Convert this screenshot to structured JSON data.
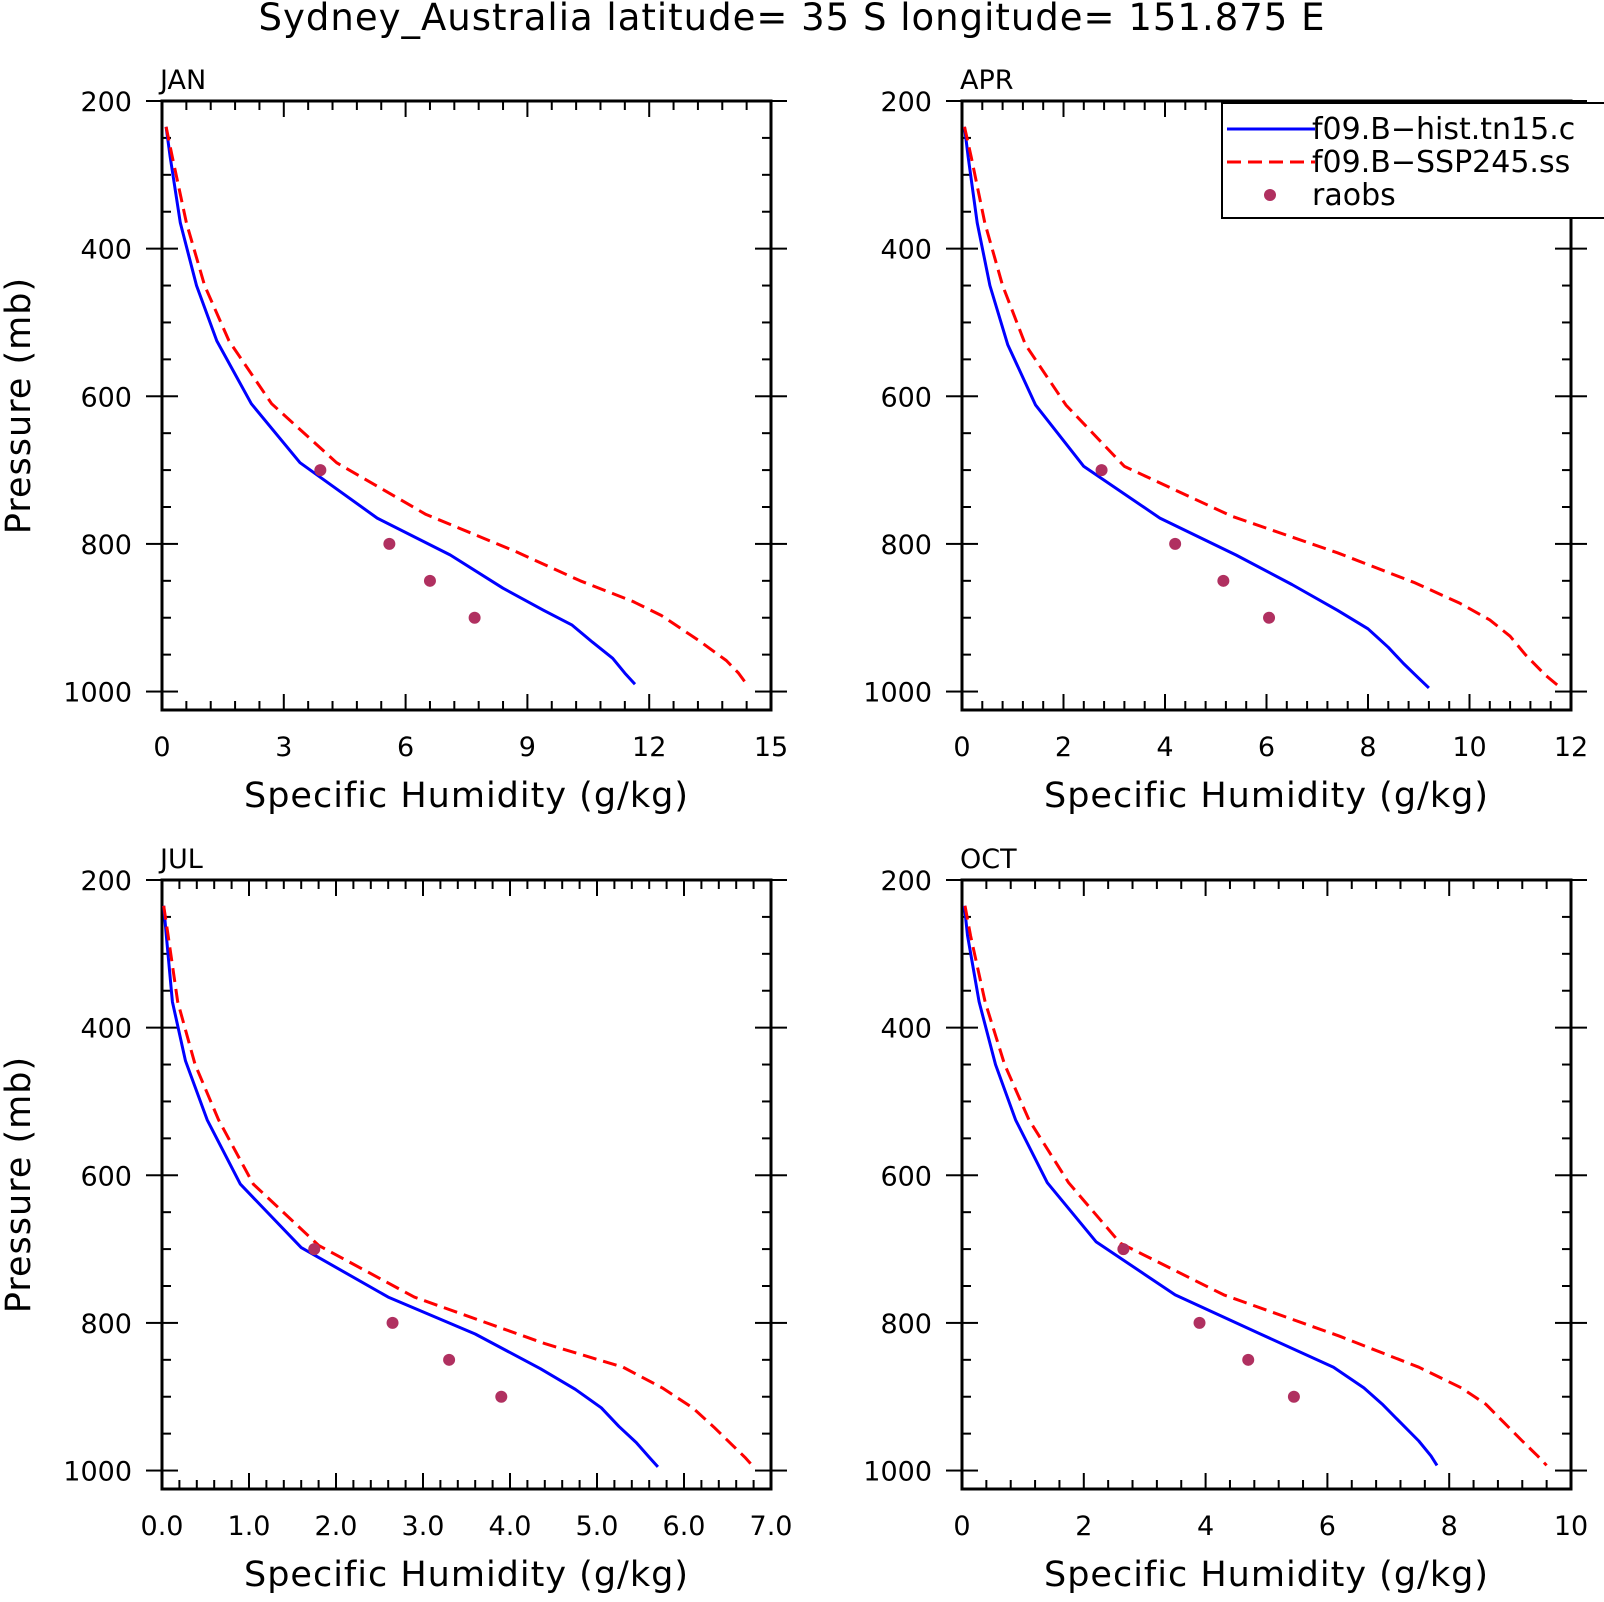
{
  "figure": {
    "title": "Sydney_Australia  latitude= 35 S longitude= 151.875 E"
  },
  "legend": {
    "entries": [
      {
        "label": "f09.B−hist.tn15.c",
        "color": "#0000ff",
        "style": "solid"
      },
      {
        "label": "f09.B−SSP245.ss",
        "color": "#ff0000",
        "style": "dashed"
      },
      {
        "label": "raobs",
        "color": "#b03060",
        "style": "marker"
      }
    ]
  },
  "chart_data": [
    {
      "type": "line",
      "panel_label": "JAN",
      "xlabel": "Specific Humidity (g/kg)",
      "ylabel": "Pressure (mb)",
      "xlim": [
        0,
        15
      ],
      "ylim": [
        200,
        1025
      ],
      "y_inverted": true,
      "xticks": [
        "0",
        "3",
        "6",
        "9",
        "12",
        "15"
      ],
      "yticks": [
        "200",
        "400",
        "600",
        "800",
        "1000"
      ],
      "series": [
        {
          "name": "f09.B−hist.tn15.c",
          "color": "#0000ff",
          "dash": "solid",
          "points": [
            [
              0.1,
              235
            ],
            [
              0.2,
              275
            ],
            [
              0.45,
              365
            ],
            [
              0.85,
              450
            ],
            [
              1.35,
              525
            ],
            [
              2.2,
              610
            ],
            [
              3.4,
              690
            ],
            [
              5.3,
              765
            ],
            [
              7.1,
              815
            ],
            [
              8.4,
              860
            ],
            [
              9.4,
              890
            ],
            [
              10.1,
              910
            ],
            [
              10.6,
              933
            ],
            [
              11.1,
              955
            ],
            [
              11.4,
              975
            ],
            [
              11.65,
              990
            ]
          ]
        },
        {
          "name": "f09.B−SSP245.ss",
          "color": "#ff0000",
          "dash": "dashed",
          "points": [
            [
              0.1,
              235
            ],
            [
              0.25,
              275
            ],
            [
              0.6,
              365
            ],
            [
              1.05,
              450
            ],
            [
              1.65,
              525
            ],
            [
              2.7,
              610
            ],
            [
              4.3,
              690
            ],
            [
              6.5,
              760
            ],
            [
              8.7,
              810
            ],
            [
              10.3,
              850
            ],
            [
              11.6,
              878
            ],
            [
              12.3,
              897
            ],
            [
              13.2,
              930
            ],
            [
              13.9,
              958
            ],
            [
              14.2,
              975
            ],
            [
              14.4,
              990
            ]
          ]
        },
        {
          "name": "raobs",
          "color": "#b03060",
          "dash": "marker",
          "points": [
            [
              3.9,
              700
            ],
            [
              5.6,
              800
            ],
            [
              6.6,
              850
            ],
            [
              7.7,
              900
            ]
          ]
        }
      ]
    },
    {
      "type": "line",
      "panel_label": "APR",
      "xlabel": "Specific Humidity (g/kg)",
      "ylabel": "",
      "xlim": [
        0,
        12
      ],
      "ylim": [
        200,
        1025
      ],
      "y_inverted": true,
      "xticks": [
        "0",
        "2",
        "4",
        "6",
        "8",
        "10",
        "12"
      ],
      "yticks": [
        "200",
        "400",
        "600",
        "800",
        "1000"
      ],
      "series": [
        {
          "name": "f09.B−hist.tn15.c",
          "color": "#0000ff",
          "dash": "solid",
          "points": [
            [
              0.05,
              235
            ],
            [
              0.12,
              275
            ],
            [
              0.3,
              365
            ],
            [
              0.55,
              450
            ],
            [
              0.9,
              530
            ],
            [
              1.45,
              612
            ],
            [
              2.4,
              695
            ],
            [
              3.9,
              765
            ],
            [
              5.4,
              815
            ],
            [
              6.5,
              855
            ],
            [
              7.4,
              890
            ],
            [
              8.0,
              915
            ],
            [
              8.4,
              940
            ],
            [
              8.7,
              962
            ],
            [
              9.0,
              982
            ],
            [
              9.2,
              995
            ]
          ]
        },
        {
          "name": "f09.B−SSP245.ss",
          "color": "#ff0000",
          "dash": "dashed",
          "points": [
            [
              0.05,
              235
            ],
            [
              0.18,
              275
            ],
            [
              0.45,
              365
            ],
            [
              0.8,
              450
            ],
            [
              1.25,
              530
            ],
            [
              2.05,
              612
            ],
            [
              3.2,
              695
            ],
            [
              5.3,
              762
            ],
            [
              7.4,
              812
            ],
            [
              8.9,
              852
            ],
            [
              9.8,
              880
            ],
            [
              10.4,
              903
            ],
            [
              10.8,
              925
            ],
            [
              11.1,
              950
            ],
            [
              11.5,
              978
            ],
            [
              11.8,
              995
            ]
          ]
        },
        {
          "name": "raobs",
          "color": "#b03060",
          "dash": "marker",
          "points": [
            [
              2.75,
              700
            ],
            [
              4.2,
              800
            ],
            [
              5.15,
              850
            ],
            [
              6.05,
              900
            ]
          ]
        }
      ]
    },
    {
      "type": "line",
      "panel_label": "JUL",
      "xlabel": "Specific Humidity (g/kg)",
      "ylabel": "Pressure (mb)",
      "xlim": [
        0,
        7
      ],
      "ylim": [
        200,
        1025
      ],
      "y_inverted": true,
      "xticks": [
        "0.0",
        "1.0",
        "2.0",
        "3.0",
        "4.0",
        "5.0",
        "6.0",
        "7.0"
      ],
      "yticks": [
        "200",
        "400",
        "600",
        "800",
        "1000"
      ],
      "series": [
        {
          "name": "f09.B−hist.tn15.c",
          "color": "#0000ff",
          "dash": "solid",
          "points": [
            [
              0.02,
              235
            ],
            [
              0.05,
              275
            ],
            [
              0.12,
              365
            ],
            [
              0.27,
              445
            ],
            [
              0.52,
              525
            ],
            [
              0.9,
              612
            ],
            [
              1.6,
              698
            ],
            [
              2.6,
              765
            ],
            [
              3.6,
              815
            ],
            [
              4.35,
              862
            ],
            [
              4.75,
              890
            ],
            [
              5.05,
              915
            ],
            [
              5.25,
              940
            ],
            [
              5.45,
              962
            ],
            [
              5.6,
              982
            ],
            [
              5.7,
              995
            ]
          ]
        },
        {
          "name": "f09.B−SSP245.ss",
          "color": "#ff0000",
          "dash": "dashed",
          "points": [
            [
              0.02,
              235
            ],
            [
              0.07,
              275
            ],
            [
              0.18,
              365
            ],
            [
              0.38,
              450
            ],
            [
              0.65,
              525
            ],
            [
              1.05,
              612
            ],
            [
              1.8,
              695
            ],
            [
              2.9,
              765
            ],
            [
              4.4,
              828
            ],
            [
              5.3,
              860
            ],
            [
              5.75,
              888
            ],
            [
              6.1,
              915
            ],
            [
              6.35,
              942
            ],
            [
              6.55,
              965
            ],
            [
              6.7,
              982
            ],
            [
              6.8,
              995
            ]
          ]
        },
        {
          "name": "raobs",
          "color": "#b03060",
          "dash": "marker",
          "points": [
            [
              1.75,
              700
            ],
            [
              2.65,
              800
            ],
            [
              3.3,
              850
            ],
            [
              3.9,
              900
            ]
          ]
        }
      ]
    },
    {
      "type": "line",
      "panel_label": "OCT",
      "xlabel": "Specific Humidity (g/kg)",
      "ylabel": "",
      "xlim": [
        0,
        10
      ],
      "ylim": [
        200,
        1025
      ],
      "y_inverted": true,
      "xticks": [
        "0",
        "2",
        "4",
        "6",
        "8",
        "10"
      ],
      "yticks": [
        "200",
        "400",
        "600",
        "800",
        "1000"
      ],
      "series": [
        {
          "name": "f09.B−hist.tn15.c",
          "color": "#0000ff",
          "dash": "solid",
          "points": [
            [
              0.04,
              235
            ],
            [
              0.09,
              275
            ],
            [
              0.28,
              365
            ],
            [
              0.55,
              450
            ],
            [
              0.88,
              525
            ],
            [
              1.4,
              610
            ],
            [
              2.2,
              690
            ],
            [
              3.5,
              762
            ],
            [
              4.9,
              815
            ],
            [
              6.1,
              860
            ],
            [
              6.6,
              888
            ],
            [
              6.9,
              910
            ],
            [
              7.2,
              935
            ],
            [
              7.5,
              960
            ],
            [
              7.7,
              980
            ],
            [
              7.8,
              993
            ]
          ]
        },
        {
          "name": "f09.B−SSP245.ss",
          "color": "#ff0000",
          "dash": "dashed",
          "points": [
            [
              0.05,
              235
            ],
            [
              0.14,
              275
            ],
            [
              0.38,
              365
            ],
            [
              0.7,
              450
            ],
            [
              1.1,
              525
            ],
            [
              1.75,
              610
            ],
            [
              2.6,
              692
            ],
            [
              4.3,
              762
            ],
            [
              6.2,
              818
            ],
            [
              7.5,
              860
            ],
            [
              8.2,
              888
            ],
            [
              8.6,
              910
            ],
            [
              8.9,
              935
            ],
            [
              9.2,
              960
            ],
            [
              9.45,
              980
            ],
            [
              9.6,
              993
            ]
          ]
        },
        {
          "name": "raobs",
          "color": "#b03060",
          "dash": "marker",
          "points": [
            [
              2.65,
              700
            ],
            [
              3.9,
              800
            ],
            [
              4.7,
              850
            ],
            [
              5.45,
              900
            ]
          ]
        }
      ]
    }
  ]
}
